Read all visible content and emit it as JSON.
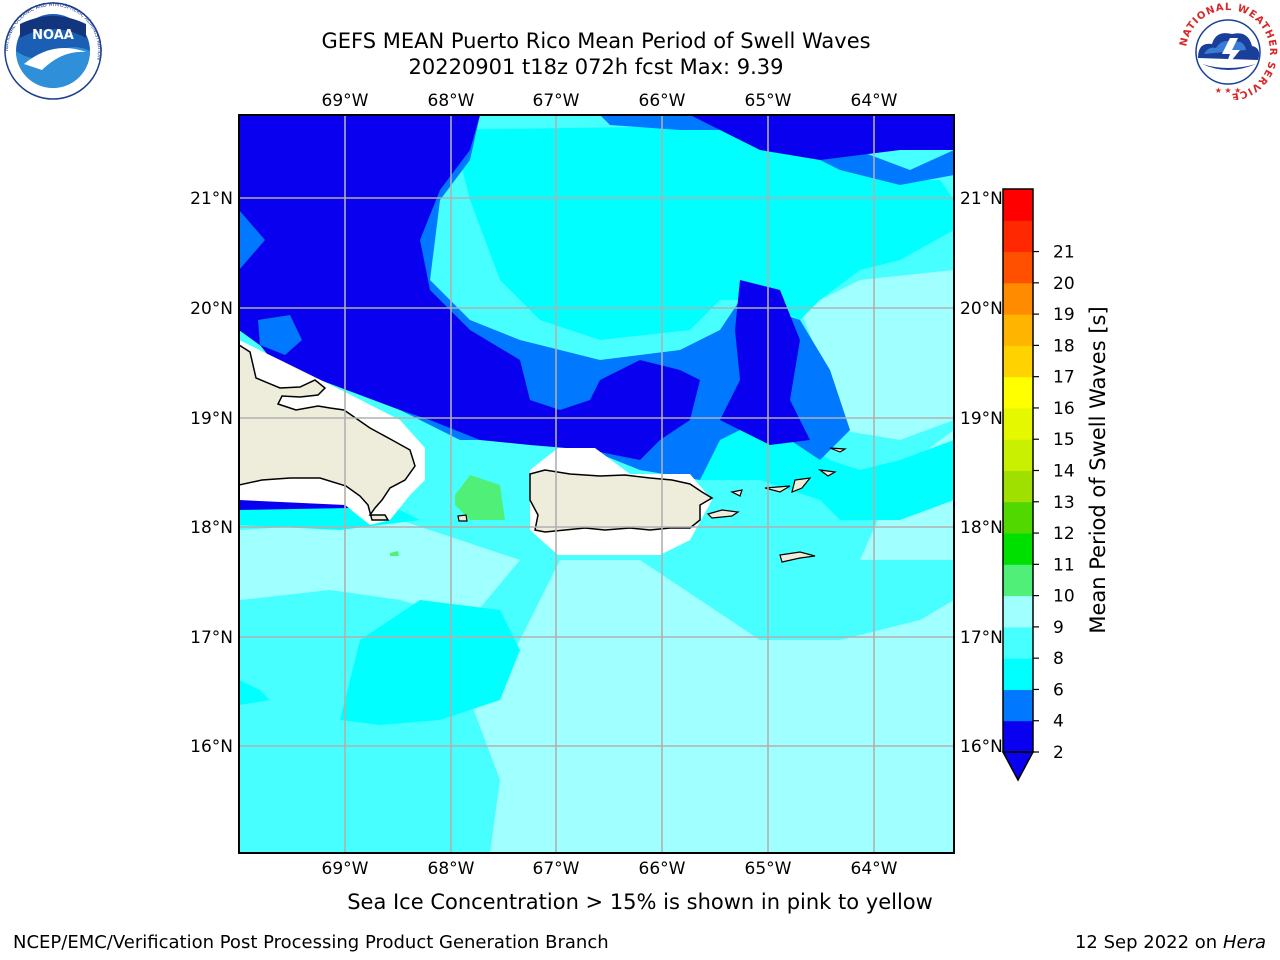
{
  "header": {
    "title_line1": "GEFS MEAN Puerto Rico Mean Period of Swell Waves",
    "title_line2": "20220901 t18z 072h fcst   Max: 9.39"
  },
  "map": {
    "lon_labels": [
      "69°W",
      "68°W",
      "67°W",
      "66°W",
      "65°W",
      "64°W"
    ],
    "lat_labels": [
      "21°N",
      "20°N",
      "19°N",
      "18°N",
      "17°N",
      "16°N"
    ],
    "land_color": "#eeeddb",
    "grid_color": "#b0b0b0"
  },
  "colorbar": {
    "label": "Mean Period of Swell Waves [s]",
    "ticks": [
      "2",
      "4",
      "6",
      "8",
      "9",
      "10",
      "11",
      "12",
      "13",
      "14",
      "15",
      "16",
      "17",
      "18",
      "19",
      "20",
      "21"
    ],
    "colors": [
      "#0a00f0",
      "#0078ff",
      "#00ffff",
      "#48ffff",
      "#a0ffff",
      "#50f078",
      "#00e000",
      "#50d800",
      "#a0e000",
      "#c8f000",
      "#e6f800",
      "#ffff00",
      "#ffd200",
      "#ffb400",
      "#ff8c00",
      "#ff5000",
      "#ff2800",
      "#ff0000"
    ],
    "extend_min_color": "#0a00f0"
  },
  "caption": "Sea Ice Concentration > 15% is shown in pink to yellow",
  "footer": {
    "left": "NCEP/EMC/Verification Post Processing Product Generation Branch",
    "date": "12 Sep 2022 on",
    "host": "Hera"
  },
  "logos": {
    "noaa": {
      "label": "NOAA",
      "ring_text": "NATIONAL OCEANIC AND ATMOSPHERIC ADMINISTRATION"
    },
    "nws": {
      "ring_text": "NATIONAL WEATHER SERVICE"
    }
  }
}
